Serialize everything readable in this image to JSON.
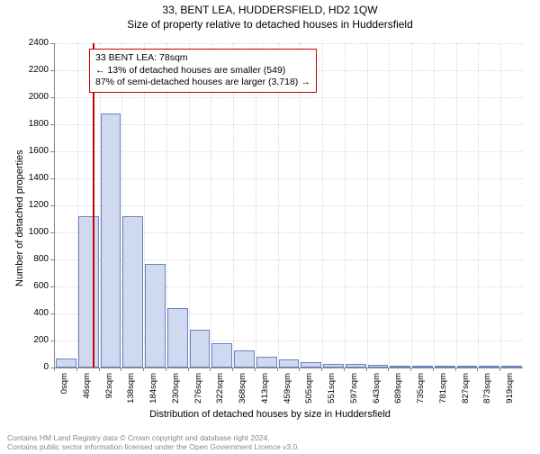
{
  "title": "33, BENT LEA, HUDDERSFIELD, HD2 1QW",
  "subtitle": "Size of property relative to detached houses in Huddersfield",
  "chart": {
    "type": "histogram",
    "y_label": "Number of detached properties",
    "x_label": "Distribution of detached houses by size in Huddersfield",
    "y_min": 0,
    "y_max": 2400,
    "y_tick_step": 200,
    "y_ticks": [
      0,
      200,
      400,
      600,
      800,
      1000,
      1200,
      1400,
      1600,
      1800,
      2000,
      2200,
      2400
    ],
    "x_ticks": [
      "0sqm",
      "46sqm",
      "92sqm",
      "138sqm",
      "184sqm",
      "230sqm",
      "276sqm",
      "322sqm",
      "368sqm",
      "413sqm",
      "459sqm",
      "505sqm",
      "551sqm",
      "597sqm",
      "643sqm",
      "689sqm",
      "735sqm",
      "781sqm",
      "827sqm",
      "873sqm",
      "919sqm"
    ],
    "bar_values": [
      70,
      1120,
      1880,
      1120,
      770,
      440,
      280,
      180,
      130,
      80,
      60,
      40,
      30,
      25,
      20,
      15,
      12,
      10,
      8,
      6,
      4
    ],
    "bar_fill_color": "#cfd9f0",
    "bar_stroke_color": "#6d82c4",
    "background_color": "#ffffff",
    "grid_color": "#d8d8d8",
    "axis_color": "#888888",
    "marker": {
      "position_sqm": 78,
      "color": "#cc0000"
    },
    "info_box": {
      "border_color": "#cc0000",
      "line1": "33 BENT LEA: 78sqm",
      "line2": "← 13% of detached houses are smaller (549)",
      "line3": "87% of semi-detached houses are larger (3,718) →"
    }
  },
  "footer": {
    "line1": "Contains HM Land Registry data © Crown copyright and database right 2024.",
    "line2": "Contains public sector information licensed under the Open Government Licence v3.0."
  }
}
